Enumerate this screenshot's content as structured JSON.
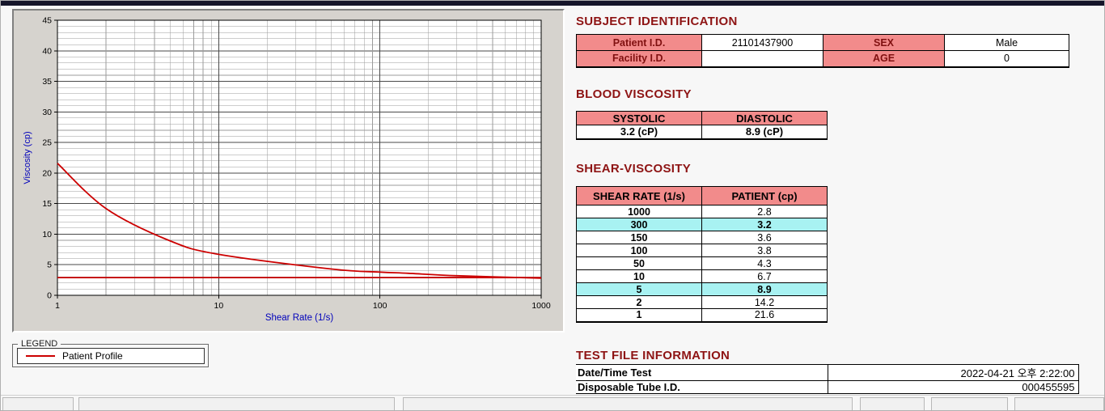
{
  "colors": {
    "heading": "#8e1414",
    "table_header_bg": "#f28b8b",
    "subject_label": "#801010",
    "highlight_bg": "#a8f2f2",
    "series_red": "#cc0000",
    "axis_label_blue": "#0000bb",
    "top_strip": "#15152a"
  },
  "chart_data": {
    "type": "line",
    "title": "",
    "xlabel": "Shear Rate (1/s)",
    "ylabel": "Viscosity (cp)",
    "x_scale": "log",
    "xlim": [
      1,
      1000
    ],
    "ylim": [
      0,
      45
    ],
    "x_ticks": [
      1,
      10,
      100,
      1000
    ],
    "y_ticks": [
      0,
      5,
      10,
      15,
      20,
      25,
      30,
      35,
      40,
      45
    ],
    "grid": "log-minor-on",
    "series": [
      {
        "name": "Patient Profile",
        "color": "#cc0000",
        "x": [
          1,
          2,
          5,
          10,
          50,
          100,
          150,
          300,
          1000
        ],
        "y": [
          21.6,
          14.2,
          8.9,
          6.7,
          4.3,
          3.8,
          3.6,
          3.2,
          2.8
        ]
      },
      {
        "name": "flat-reference-line",
        "color": "#cc0000",
        "x": [
          1,
          1000
        ],
        "y": [
          2.9,
          2.9
        ]
      }
    ],
    "legend": {
      "title": "LEGEND",
      "position": "below-left",
      "entries": [
        {
          "label": "Patient Profile",
          "color": "#cc0000"
        }
      ]
    }
  },
  "subject_identification": {
    "title": "SUBJECT IDENTIFICATION",
    "rows": [
      {
        "label1": "Patient I.D.",
        "value1": "21101437900",
        "label2": "SEX",
        "value2": "Male"
      },
      {
        "label1": "Facility I.D.",
        "value1": "",
        "label2": "AGE",
        "value2": "0"
      }
    ]
  },
  "blood_viscosity": {
    "title": "BLOOD VISCOSITY",
    "headers": [
      "SYSTOLIC",
      "DIASTOLIC"
    ],
    "values": [
      "3.2 (cP)",
      "8.9 (cP)"
    ]
  },
  "shear_viscosity": {
    "title": "SHEAR-VISCOSITY",
    "headers": [
      "SHEAR RATE (1/s)",
      "PATIENT (cp)"
    ],
    "rows": [
      {
        "shear_rate": "1000",
        "patient": "2.8",
        "highlight": false
      },
      {
        "shear_rate": "300",
        "patient": "3.2",
        "highlight": true
      },
      {
        "shear_rate": "150",
        "patient": "3.6",
        "highlight": false
      },
      {
        "shear_rate": "100",
        "patient": "3.8",
        "highlight": false
      },
      {
        "shear_rate": "50",
        "patient": "4.3",
        "highlight": false
      },
      {
        "shear_rate": "10",
        "patient": "6.7",
        "highlight": false
      },
      {
        "shear_rate": "5",
        "patient": "8.9",
        "highlight": true
      },
      {
        "shear_rate": "2",
        "patient": "14.2",
        "highlight": false
      },
      {
        "shear_rate": "1",
        "patient": "21.6",
        "highlight": false
      }
    ]
  },
  "test_file_information": {
    "title": "TEST FILE INFORMATION",
    "rows": [
      {
        "label": "Date/Time Test",
        "value": "2022-04-21  오후 2:22:00"
      },
      {
        "label": "Disposable Tube I.D.",
        "value": "000455595"
      }
    ]
  }
}
